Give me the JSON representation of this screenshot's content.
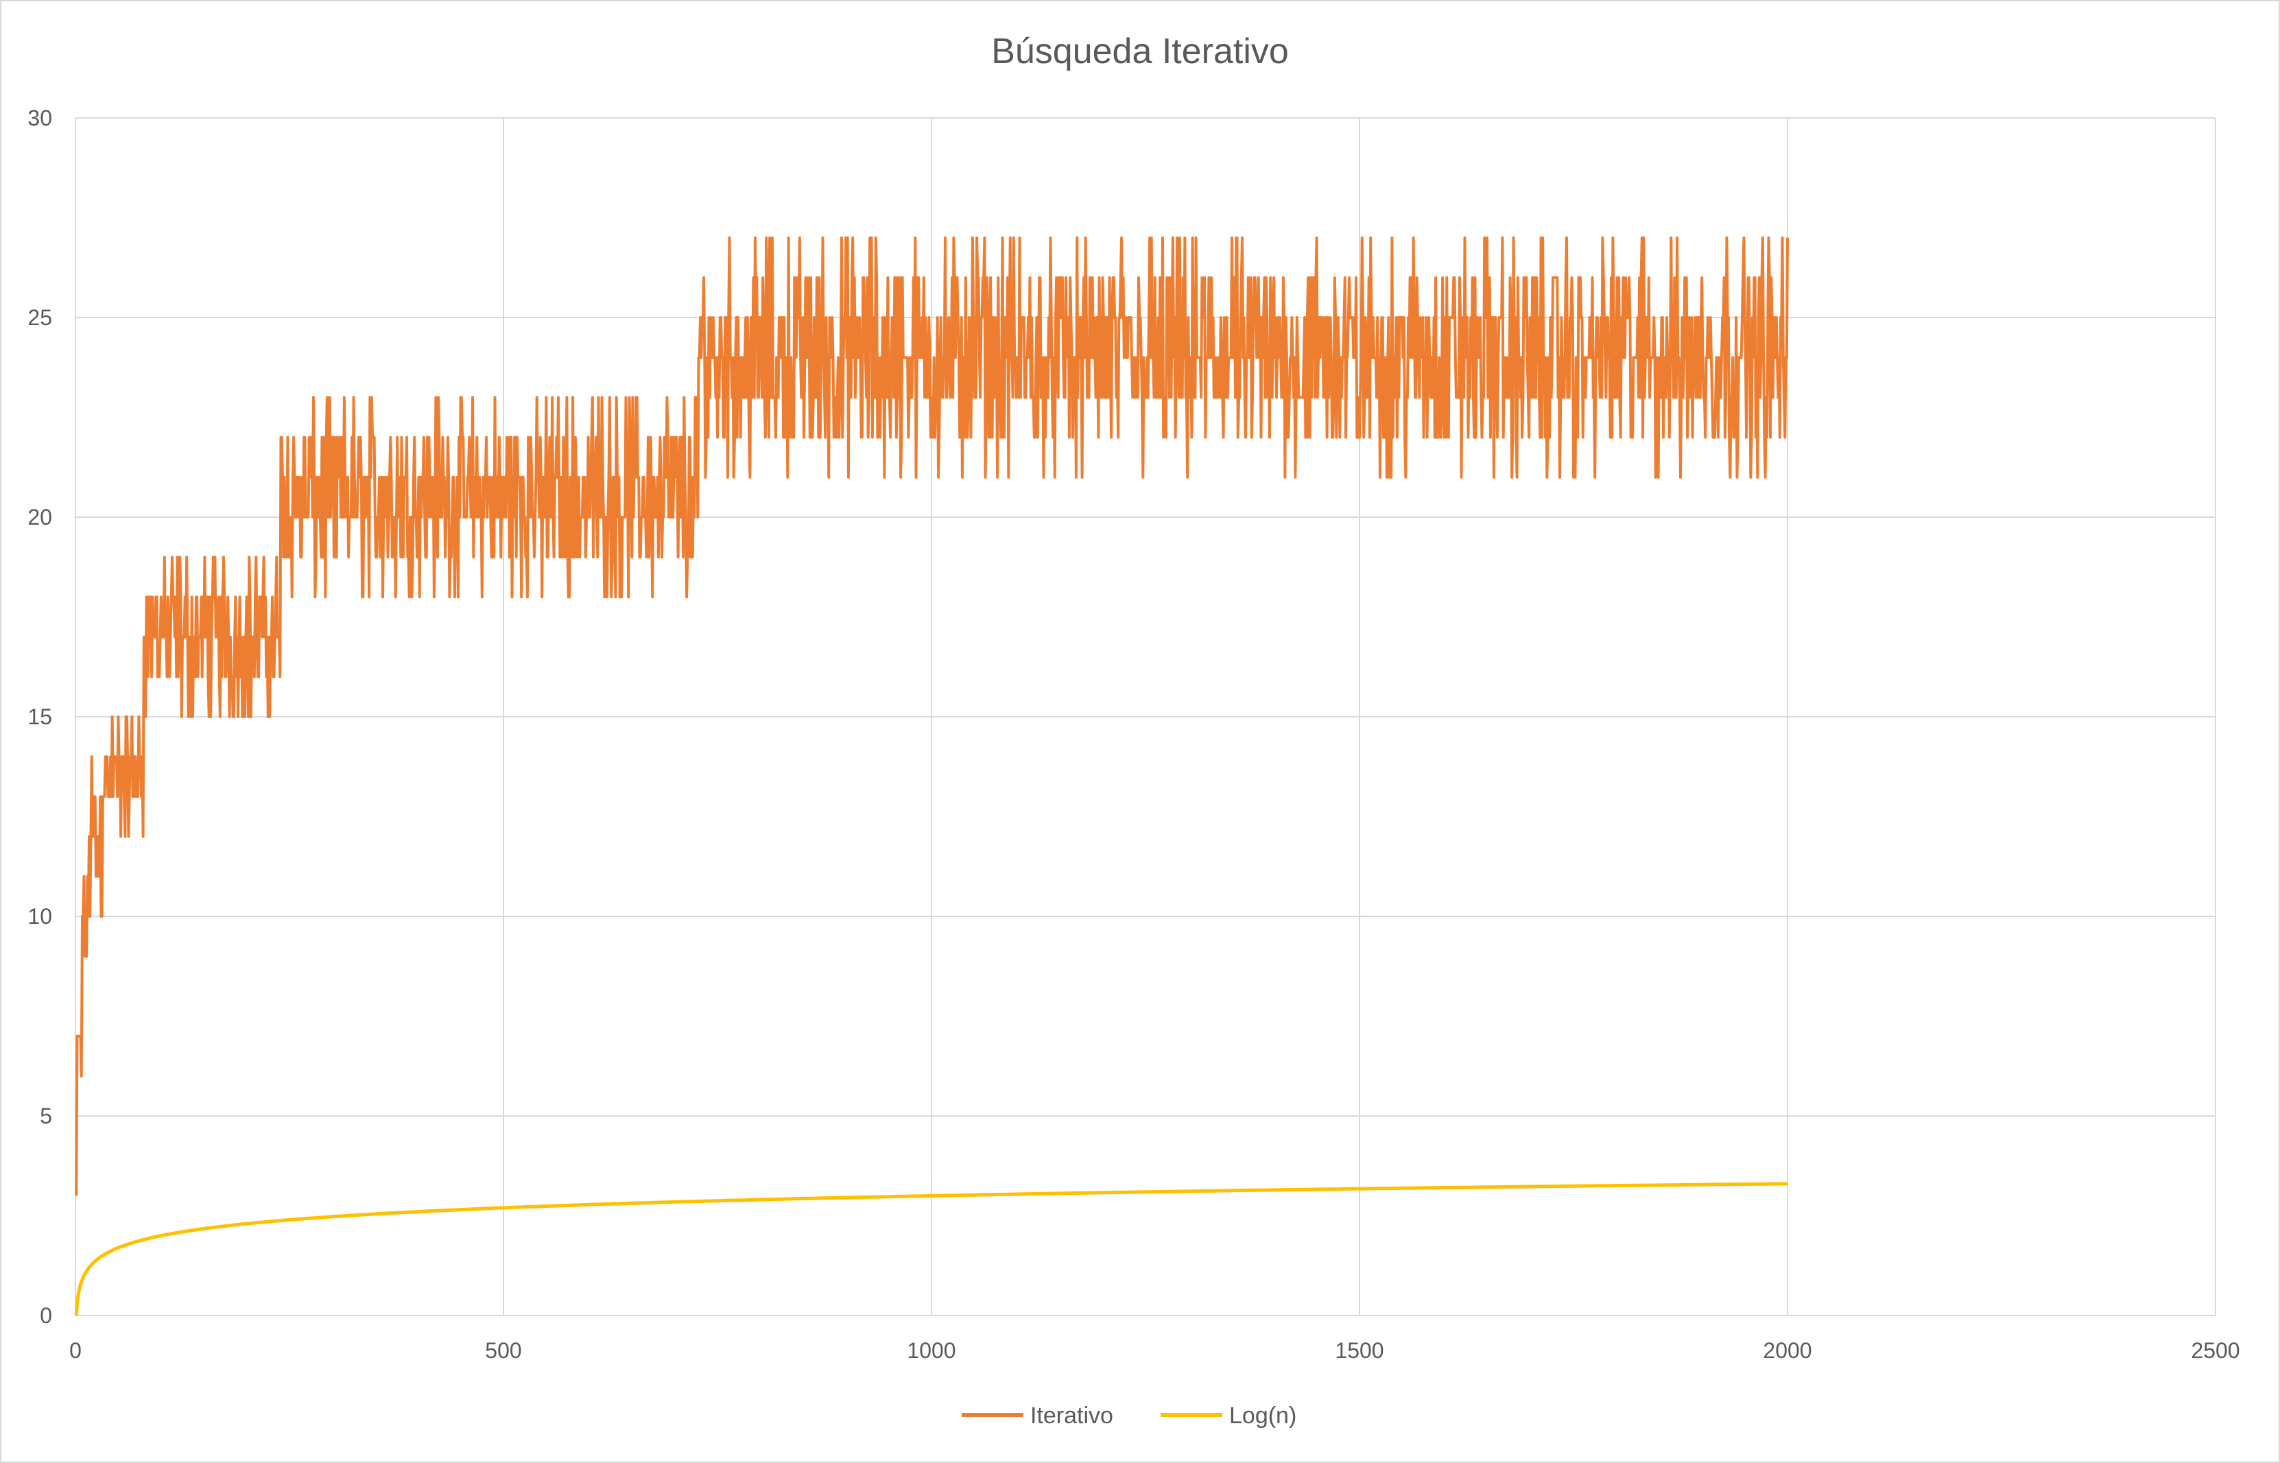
{
  "chart_data": {
    "type": "line",
    "title": "Búsqueda Iterativo",
    "xlabel": "",
    "ylabel": "",
    "xlim": [
      0,
      2500
    ],
    "ylim": [
      0,
      30
    ],
    "x_ticks": [
      0,
      500,
      1000,
      1500,
      2000,
      2500
    ],
    "y_ticks": [
      0,
      5,
      10,
      15,
      20,
      25,
      30
    ],
    "grid": true,
    "legend_position": "bottom",
    "series": [
      {
        "name": "Iterativo",
        "color": "#ED7D31",
        "x_range": [
          1,
          2000
        ],
        "segments": [
          {
            "x_from": 1,
            "x_to": 1,
            "values": [
              3
            ]
          },
          {
            "x_from": 2,
            "x_to": 3,
            "values": [
              5,
              6,
              7
            ]
          },
          {
            "x_from": 4,
            "x_to": 7,
            "values": [
              6,
              7
            ]
          },
          {
            "x_from": 8,
            "x_to": 15,
            "values": [
              9,
              10,
              11
            ]
          },
          {
            "x_from": 16,
            "x_to": 31,
            "values": [
              9,
              10,
              11,
              12,
              13,
              14,
              15
            ]
          },
          {
            "x_from": 32,
            "x_to": 63,
            "values": [
              12,
              13,
              14,
              15
            ]
          },
          {
            "x_from": 64,
            "x_to": 79,
            "values": [
              12,
              13,
              14,
              15
            ]
          },
          {
            "x_from": 80,
            "x_to": 127,
            "values": [
              15,
              16,
              17,
              18,
              19
            ]
          },
          {
            "x_from": 128,
            "x_to": 239,
            "values": [
              15,
              16,
              17,
              18,
              19
            ]
          },
          {
            "x_from": 240,
            "x_to": 511,
            "values": [
              18,
              19,
              20,
              21,
              22,
              23
            ]
          },
          {
            "x_from": 512,
            "x_to": 727,
            "values": [
              18,
              19,
              20,
              21,
              22,
              23
            ]
          },
          {
            "x_from": 728,
            "x_to": 1000,
            "values": [
              21,
              22,
              23,
              24,
              25,
              26,
              27
            ]
          },
          {
            "x_from": 1001,
            "x_to": 2000,
            "values": [
              21,
              22,
              23,
              24,
              25,
              26,
              27
            ]
          }
        ]
      },
      {
        "name": "Log(n)",
        "color": "#FFC000",
        "function": "log10",
        "x_range": [
          1,
          2000
        ],
        "points": [
          [
            1,
            0
          ],
          [
            2,
            0.301
          ],
          [
            5,
            0.699
          ],
          [
            10,
            1.0
          ],
          [
            20,
            1.301
          ],
          [
            50,
            1.699
          ],
          [
            100,
            2.0
          ],
          [
            200,
            2.301
          ],
          [
            500,
            2.699
          ],
          [
            1000,
            3.0
          ],
          [
            1500,
            3.176
          ],
          [
            2000,
            3.301
          ]
        ]
      }
    ]
  }
}
